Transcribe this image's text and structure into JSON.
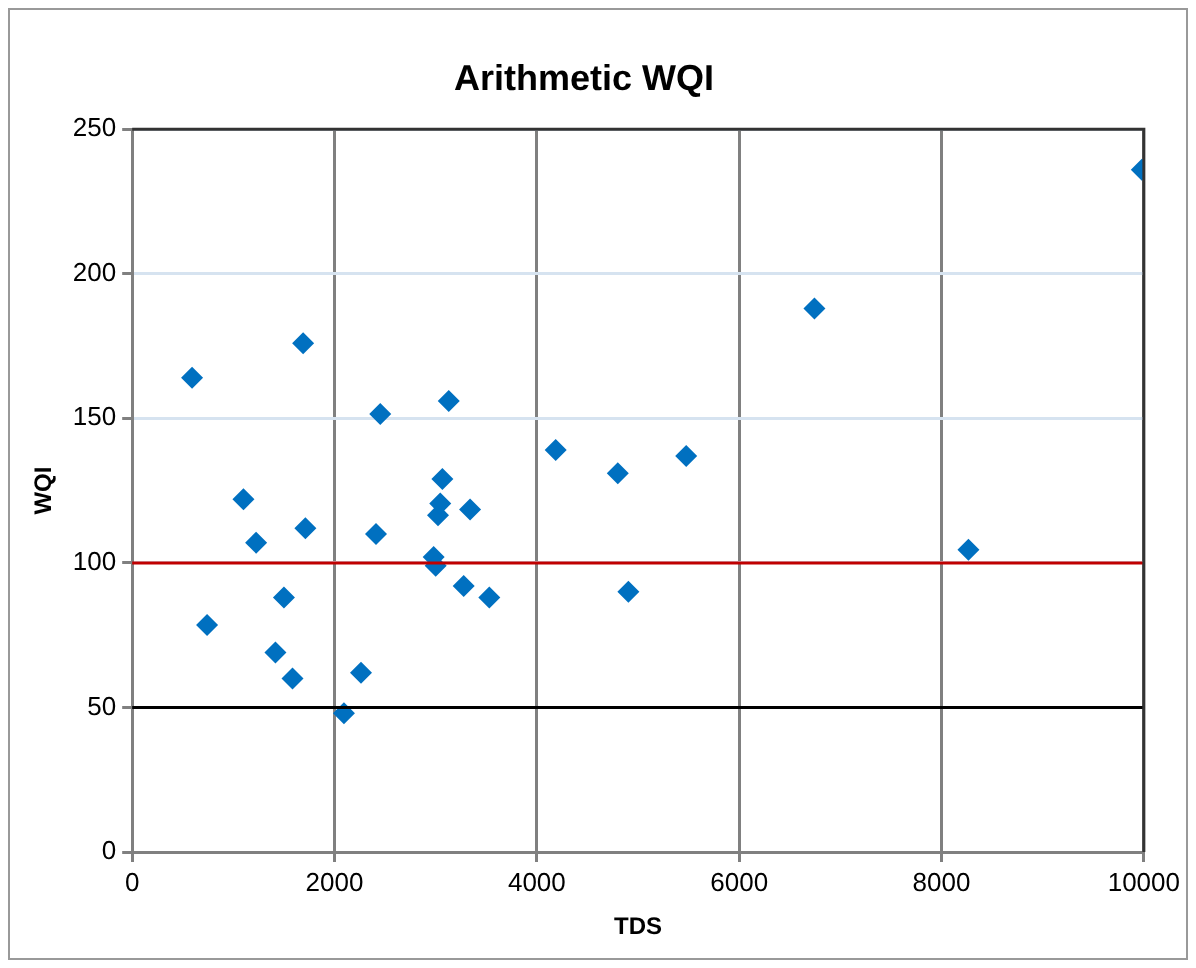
{
  "chart_data": {
    "type": "scatter",
    "title": "Arithmetic WQI",
    "xlabel": "TDS",
    "ylabel": "WQI",
    "x": [
      592,
      740,
      1100,
      1225,
      1416,
      1500,
      1585,
      1690,
      1712,
      2093,
      2262,
      2410,
      2452,
      2980,
      3000,
      3023,
      3045,
      3066,
      3129,
      3277,
      3340,
      3530,
      4186,
      4800,
      4905,
      5476,
      6744,
      8266,
      9980
    ],
    "series": [
      {
        "color": "#0070c0",
        "values": [
          164,
          78.5,
          122,
          107,
          69,
          88,
          60,
          176,
          112,
          48,
          62,
          110,
          151.5,
          102,
          99,
          116.5,
          120.5,
          129,
          156,
          92,
          118.5,
          88,
          139,
          131,
          90,
          137,
          188,
          104.5,
          236
        ]
      }
    ],
    "xlim": [
      0,
      10000
    ],
    "xticks": [
      0,
      2000,
      4000,
      6000,
      8000,
      10000
    ],
    "ylim": [
      0,
      250
    ],
    "yticks": [
      0,
      50,
      100,
      150,
      200,
      250
    ],
    "grid": true,
    "legend": false,
    "marker": "diamond",
    "ref_lines": [
      {
        "axis": "y",
        "value": 100,
        "color": "#c00000"
      },
      {
        "axis": "y",
        "value": 50,
        "color": "#000000"
      }
    ]
  }
}
